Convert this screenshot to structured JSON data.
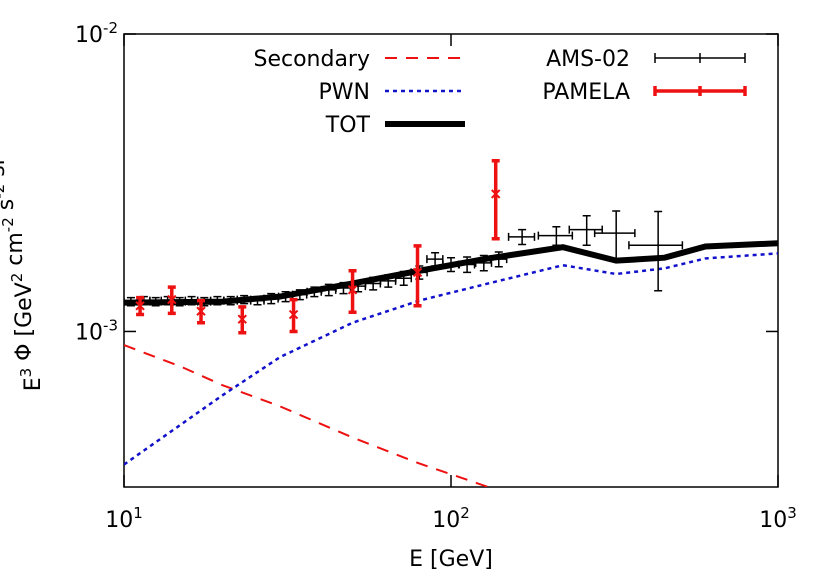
{
  "chart_data": {
    "type": "line",
    "xlabel": "E [GeV]",
    "ylabel": "E^{3} Φ [GeV^{2} cm^{-2} s^{-2} sr^{-1}]",
    "xlog": true,
    "ylog": true,
    "xlim": [
      10,
      1000
    ],
    "ylim": [
      0.0003,
      0.01
    ],
    "xticks": [
      {
        "value": 10,
        "label": "10^1"
      },
      {
        "value": 100,
        "label": "10^2"
      },
      {
        "value": 1000,
        "label": "10^3"
      }
    ],
    "yticks": [
      {
        "value": 0.001,
        "label": "10^-3"
      },
      {
        "value": 0.01,
        "label": "10^-2"
      }
    ],
    "series": [
      {
        "name": "Secondary",
        "style": "line",
        "color": "#ee1111",
        "dash": "12,9",
        "width": 2,
        "x": [
          10,
          15,
          20,
          30,
          50,
          80,
          130
        ],
        "values": [
          0.0009,
          0.00076,
          0.00066,
          0.00056,
          0.00044,
          0.00036,
          0.0003
        ]
      },
      {
        "name": "PWN",
        "style": "line",
        "color": "#1111cc",
        "dash": "4,4",
        "width": 2.5,
        "x": [
          10,
          20,
          30,
          50,
          80,
          130,
          220,
          320,
          450,
          600,
          1000
        ],
        "values": [
          0.000357,
          0.00061,
          0.00082,
          0.00107,
          0.00127,
          0.00145,
          0.00167,
          0.00156,
          0.00163,
          0.00176,
          0.00183
        ]
      },
      {
        "name": "TOT",
        "style": "line",
        "color": "#000000",
        "dash": "none",
        "width": 6,
        "x": [
          10,
          20,
          30,
          50,
          80,
          130,
          220,
          320,
          450,
          600,
          1000
        ],
        "values": [
          0.00125,
          0.00126,
          0.00131,
          0.00145,
          0.0016,
          0.00176,
          0.00192,
          0.00173,
          0.00177,
          0.00193,
          0.00198
        ]
      },
      {
        "name": "AMS-02",
        "style": "errorbar",
        "color": "#000000",
        "width": 1.5,
        "x": [
          10.5,
          11.5,
          12.5,
          13.6,
          14.8,
          16.1,
          17.6,
          19.3,
          21.2,
          23.3,
          25.6,
          28.2,
          31.2,
          34.5,
          38.2,
          42.3,
          46.9,
          52,
          57.8,
          64.3,
          71.7,
          80,
          89.4,
          100,
          112,
          126,
          140,
          165,
          210,
          260,
          320,
          430
        ],
        "xerr": [
          0.5,
          0.5,
          0.5,
          0.6,
          0.6,
          0.7,
          0.8,
          0.9,
          1,
          1.1,
          1.2,
          1.4,
          1.5,
          1.7,
          1.9,
          2.1,
          2.4,
          2.7,
          3,
          3.4,
          3.9,
          4.5,
          5,
          5.5,
          6,
          7,
          8,
          15,
          25,
          30,
          45,
          80
        ],
        "values": [
          0.00126,
          0.00127,
          0.00126,
          0.00127,
          0.00126,
          0.00127,
          0.00126,
          0.00127,
          0.00127,
          0.00128,
          0.00127,
          0.00129,
          0.00131,
          0.00133,
          0.00136,
          0.00138,
          0.0014,
          0.00142,
          0.00145,
          0.00148,
          0.00151,
          0.00158,
          0.00175,
          0.00168,
          0.00168,
          0.0017,
          0.00175,
          0.00208,
          0.0021,
          0.0022,
          0.00214,
          0.00195
        ],
        "yerr": [
          4e-05,
          4e-05,
          4e-05,
          4e-05,
          4e-05,
          4e-05,
          4e-05,
          4e-05,
          4e-05,
          4e-05,
          4e-05,
          5e-05,
          5e-05,
          5e-05,
          5e-05,
          6e-05,
          6e-05,
          6e-05,
          7e-05,
          7e-05,
          8e-05,
          8e-05,
          9e-05,
          9e-05,
          0.0001,
          0.0001,
          0.0001,
          0.00012,
          0.00015,
          0.00025,
          0.0004,
          0.00058
        ]
      },
      {
        "name": "PAMELA",
        "style": "errorbar",
        "color": "#ee1111",
        "width": 3.5,
        "x": [
          11.2,
          14,
          17.2,
          23,
          33,
          50,
          79,
          137
        ],
        "values": [
          0.00122,
          0.00128,
          0.00117,
          0.0011,
          0.00114,
          0.00138,
          0.00158,
          0.0029
        ],
        "yerr": [
          8e-05,
          0.00013,
          0.0001,
          0.00011,
          0.00014,
          0.00022,
          0.00036,
          0.00085
        ]
      }
    ]
  }
}
